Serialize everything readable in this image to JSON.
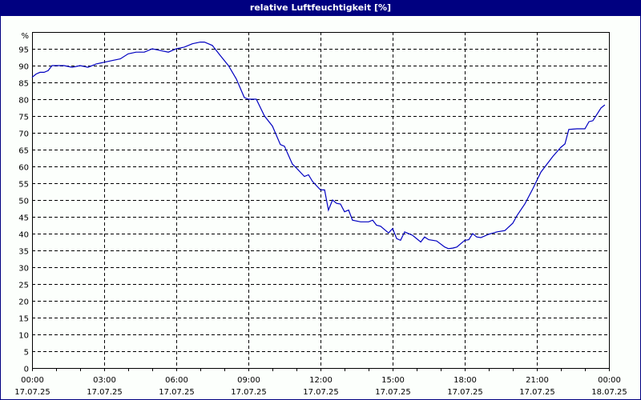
{
  "window": {
    "title": "relative Luftfeuchtigkeit [%]"
  },
  "chart_data": {
    "type": "line",
    "title": "relative Luftfeuchtigkeit [%]",
    "xlabel": "",
    "ylabel": "%",
    "ylim": [
      0,
      100
    ],
    "yticks": [
      0,
      5,
      10,
      15,
      20,
      25,
      30,
      35,
      40,
      45,
      50,
      55,
      60,
      65,
      70,
      75,
      80,
      85,
      90,
      95
    ],
    "y_unit_label": "%",
    "xticks": [
      {
        "time": "00:00",
        "date": "17.07.25"
      },
      {
        "time": "03:00",
        "date": "17.07.25"
      },
      {
        "time": "06:00",
        "date": "17.07.25"
      },
      {
        "time": "09:00",
        "date": "17.07.25"
      },
      {
        "time": "12:00",
        "date": "17.07.25"
      },
      {
        "time": "15:00",
        "date": "17.07.25"
      },
      {
        "time": "18:00",
        "date": "17.07.25"
      },
      {
        "time": "21:00",
        "date": "17.07.25"
      },
      {
        "time": "00:00",
        "date": "18.07.25"
      }
    ],
    "grid": true,
    "line_color": "#0000c0",
    "series": [
      {
        "name": "relative Luftfeuchtigkeit",
        "x_hours": [
          0,
          0.17,
          0.33,
          0.5,
          0.67,
          0.83,
          1.0,
          1.33,
          1.67,
          2.0,
          2.33,
          2.67,
          3.0,
          3.33,
          3.67,
          4.0,
          4.33,
          4.67,
          5.0,
          5.33,
          5.67,
          6.0,
          6.33,
          6.67,
          7.0,
          7.17,
          7.5,
          7.83,
          8.17,
          8.5,
          8.83,
          9.0,
          9.33,
          9.67,
          10.0,
          10.33,
          10.5,
          10.83,
          11.0,
          11.33,
          11.5,
          11.67,
          12.0,
          12.17,
          12.33,
          12.5,
          12.67,
          12.83,
          13.0,
          13.17,
          13.33,
          13.67,
          14.0,
          14.17,
          14.33,
          14.5,
          14.83,
          15.0,
          15.17,
          15.33,
          15.5,
          15.83,
          16.17,
          16.33,
          16.5,
          16.83,
          17.17,
          17.33,
          17.5,
          17.67,
          18.0,
          18.17,
          18.33,
          18.5,
          18.67,
          19.0,
          19.33,
          19.67,
          20.0,
          20.17,
          20.5,
          20.83,
          21.17,
          21.67,
          22.0,
          22.17,
          22.33,
          22.67,
          23.0,
          23.17,
          23.33,
          23.5,
          23.67,
          23.83
        ],
        "values": [
          86.5,
          87.5,
          88,
          88,
          88.5,
          90,
          90,
          90,
          89.5,
          90,
          89.5,
          90.5,
          91,
          91.5,
          92,
          93.5,
          94,
          94,
          95,
          94.5,
          94,
          95,
          95.5,
          96.5,
          97,
          97,
          96,
          93,
          90,
          86,
          80.5,
          80,
          80,
          75,
          72,
          66.5,
          66,
          60.7,
          59.5,
          57,
          57.5,
          55.5,
          53,
          53,
          47,
          50,
          49,
          48.8,
          46.5,
          47,
          44,
          43.5,
          43.5,
          44,
          42.5,
          42.2,
          40.2,
          41.5,
          38.5,
          38,
          40.5,
          39.5,
          37.5,
          39,
          38.2,
          37.8,
          36,
          35.5,
          35.7,
          36,
          38,
          38.2,
          40,
          39,
          38.8,
          39.8,
          40.5,
          40.9,
          43.1,
          45.3,
          48.8,
          53.3,
          58.3,
          63,
          65.7,
          66.7,
          71,
          71.2,
          71.2,
          73.3,
          73.6,
          75.5,
          77.4,
          78.3
        ]
      }
    ]
  }
}
